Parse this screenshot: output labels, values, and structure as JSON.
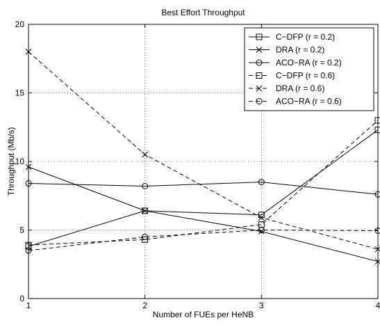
{
  "chart_data": {
    "type": "line",
    "title": "Best Effort Throughput",
    "xlabel": "Number of FUEs per HeNB",
    "ylabel": "Throughput (Mb/s)",
    "x": [
      1,
      2,
      3,
      4
    ],
    "xlim": [
      1,
      4
    ],
    "ylim": [
      0,
      20
    ],
    "xticks": [
      "1",
      "2",
      "3",
      "4"
    ],
    "yticks": [
      "0",
      "5",
      "10",
      "15",
      "20"
    ],
    "grid": true,
    "legend_position": "top-right",
    "series": [
      {
        "name": "C−DFP (r = 0.2)",
        "values": [
          3.8,
          6.4,
          6.1,
          12.3
        ],
        "line": "solid",
        "marker": "square"
      },
      {
        "name": "DRA (r = 0.2)",
        "values": [
          9.6,
          6.4,
          4.9,
          2.7
        ],
        "line": "solid",
        "marker": "x"
      },
      {
        "name": "ACO−RA (r = 0.2)",
        "values": [
          8.4,
          8.2,
          8.5,
          7.6
        ],
        "line": "solid",
        "marker": "circle"
      },
      {
        "name": "C−DFP (r = 0.6)",
        "values": [
          3.9,
          4.3,
          5.4,
          13.0
        ],
        "line": "dashed",
        "marker": "square"
      },
      {
        "name": "DRA (r = 0.6)",
        "values": [
          18.0,
          10.5,
          5.9,
          3.6
        ],
        "line": "dashed",
        "marker": "x"
      },
      {
        "name": "ACO−RA (r = 0.6)",
        "values": [
          3.5,
          4.5,
          5.0,
          4.95
        ],
        "line": "dashed",
        "marker": "circle"
      }
    ]
  }
}
